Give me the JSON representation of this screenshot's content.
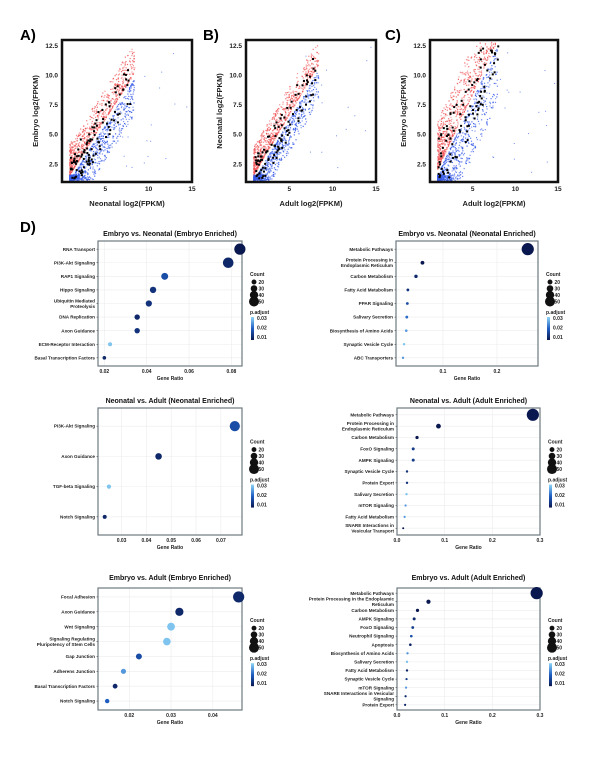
{
  "panel_labels": [
    "A)",
    "B)",
    "C)",
    "D)"
  ],
  "chart_data": [
    {
      "type": "scatter",
      "panel": "A)",
      "xlabel": "Neonatal log2(FPKM)",
      "ylabel": "Embryo log2(FPKM)",
      "xlim": [
        0,
        15
      ],
      "ylim": [
        1,
        13
      ],
      "xticks": [
        "5",
        "10",
        "15"
      ],
      "yticks": [
        "2.5",
        "5.0",
        "7.5",
        "10.0",
        "12.5"
      ],
      "colors": {
        "up": "#f0575a",
        "down": "#3a5de8",
        "highlight": "#000000"
      }
    },
    {
      "type": "scatter",
      "panel": "B)",
      "xlabel": "Adult log2(FPKM)",
      "ylabel": "Neonatal log2(FPKM)",
      "xlim": [
        0,
        15
      ],
      "ylim": [
        1,
        13
      ],
      "xticks": [
        "5",
        "10",
        "15"
      ],
      "yticks": [
        "2.5",
        "5.0",
        "7.5",
        "10.0",
        "12.5"
      ],
      "colors": {
        "up": "#f0575a",
        "down": "#3a5de8",
        "highlight": "#000000"
      }
    },
    {
      "type": "scatter",
      "panel": "C)",
      "xlabel": "Adult log2(FPKM)",
      "ylabel": "Embryo log2(FPKM)",
      "xlim": [
        0,
        15
      ],
      "ylim": [
        1,
        13
      ],
      "xticks": [
        "5",
        "10",
        "15"
      ],
      "yticks": [
        "2.5",
        "5.0",
        "7.5",
        "10.0",
        "12.5"
      ],
      "colors": {
        "up": "#f0575a",
        "down": "#3a5de8",
        "highlight": "#000000"
      }
    },
    {
      "type": "scatter",
      "subtype": "dotplot",
      "title": "Embryo vs. Neonatal (Embryo Enriched)",
      "xlabel": "Gene Ratio",
      "xlim": [
        0.017,
        0.085
      ],
      "xticks": [
        0.02,
        0.04,
        0.06,
        0.08
      ],
      "xtick_labels": [
        "0.02",
        "0.04",
        "0.06",
        "0.08"
      ],
      "terms": [
        "RNA Transport",
        "PI3K-Akt Signaling",
        "RAP1 Signaling",
        "Hippo Signaling",
        "Ubiquitin Mediated Proteolysis",
        "DNA Replication",
        "Axon Guidance",
        "ECM-Receptor Interaction",
        "Basal Transcription Factors"
      ],
      "gene_ratio": [
        0.084,
        0.0785,
        0.0485,
        0.043,
        0.041,
        0.0355,
        0.0355,
        0.0227,
        0.02
      ],
      "count": [
        50,
        47,
        29,
        26,
        25,
        21,
        21,
        14,
        12
      ],
      "p_adjust": [
        0.005,
        0.008,
        0.015,
        0.01,
        0.01,
        0.008,
        0.01,
        0.03,
        0.008
      ]
    },
    {
      "type": "scatter",
      "subtype": "dotplot",
      "title": "Embryo vs. Neonatal (Neonatal Enriched)",
      "xlabel": "Gene Ratio",
      "xlim": [
        0.013,
        0.276
      ],
      "xticks": [
        0.1,
        0.2
      ],
      "xtick_labels": [
        "0.1",
        "0.2"
      ],
      "terms": [
        "Metabolic Pathways",
        "Protein Processing in Endoplasmic Reticulum",
        "Carbon Metabolism",
        "Fatty Acid Metabolism",
        "PPAR Signaling",
        "Salivary Secretion",
        "Biosynthesis of Amino Acids",
        "Synaptic Vesicle Cycle",
        "ABC Transporters"
      ],
      "gene_ratio": [
        0.257,
        0.062,
        0.05,
        0.035,
        0.034,
        0.033,
        0.032,
        0.028,
        0.026
      ],
      "count": [
        55,
        13,
        11,
        8,
        8,
        8,
        7,
        6,
        6
      ],
      "p_adjust": [
        0.005,
        0.005,
        0.008,
        0.01,
        0.015,
        0.02,
        0.025,
        0.03,
        0.025
      ]
    },
    {
      "type": "scatter",
      "subtype": "dotplot",
      "title": "Neonatal vs. Adult (Neonatal Enriched)",
      "xlabel": "Gene Ratio",
      "xlim": [
        0.0205,
        0.0785
      ],
      "xticks": [
        0.03,
        0.04,
        0.05,
        0.06,
        0.07
      ],
      "xtick_labels": [
        "0.03",
        "0.04",
        "0.05",
        "0.06",
        "0.07"
      ],
      "terms": [
        "PI3K-Akt Signaling",
        "Axon Guidance",
        "TGF-beta Signaling",
        "Notch Signaling"
      ],
      "gene_ratio": [
        0.0756,
        0.0449,
        0.0249,
        0.0232
      ],
      "count": [
        45,
        27,
        15,
        14
      ],
      "p_adjust": [
        0.015,
        0.008,
        0.03,
        0.008
      ]
    },
    {
      "type": "scatter",
      "subtype": "dotplot",
      "title": "Neonatal vs. Adult (Adult Enriched)",
      "xlabel": "Gene Ratio",
      "xlim": [
        0,
        0.3
      ],
      "xticks": [
        0.0,
        0.1,
        0.2,
        0.3
      ],
      "xtick_labels": [
        "0.0",
        "0.1",
        "0.2",
        "0.3"
      ],
      "terms": [
        "Metabolic Pathways",
        "Protein Processing in Endoplasmic Reticulum",
        "Carbon Metabolism",
        "FoxO Signaling",
        "AMPK Signaling",
        "Synaptic Vesicle Cycle",
        "Protein Export",
        "Salivary Secretion",
        "mTOR Signaling",
        "Fatty Acid Metabolism",
        "SNARE Interactions in Vesicular Transport"
      ],
      "gene_ratio": [
        0.285,
        0.087,
        0.042,
        0.034,
        0.034,
        0.021,
        0.021,
        0.02,
        0.018,
        0.016,
        0.013
      ],
      "count": [
        55,
        18,
        10,
        9,
        9,
        6,
        6,
        6,
        5,
        5,
        4
      ],
      "p_adjust": [
        0.005,
        0.005,
        0.005,
        0.012,
        0.012,
        0.01,
        0.01,
        0.03,
        0.025,
        0.025,
        0.005
      ]
    },
    {
      "type": "scatter",
      "subtype": "dotplot",
      "title": "Embryo vs. Adult (Embryo Enriched)",
      "xlabel": "Gene Ratio",
      "xlim": [
        0.0125,
        0.047
      ],
      "xticks": [
        0.02,
        0.03,
        0.04
      ],
      "xtick_labels": [
        "0.02",
        "0.03",
        "0.04"
      ],
      "terms": [
        "Focal Adhesion",
        "Axon Guidance",
        "Wnt Signaling",
        "Signaling Regulating Pluripotency of Stem Cells",
        "Gap Junction",
        "Adherens Junction",
        "Basal Transcription Factors",
        "Notch Signaling"
      ],
      "gene_ratio": [
        0.0462,
        0.032,
        0.03,
        0.029,
        0.0223,
        0.0186,
        0.0166,
        0.0147
      ],
      "count": [
        50,
        35,
        33,
        32,
        24,
        20,
        18,
        16
      ],
      "p_adjust": [
        0.008,
        0.008,
        0.03,
        0.03,
        0.015,
        0.025,
        0.008,
        0.018
      ]
    },
    {
      "type": "scatter",
      "subtype": "dotplot",
      "title": "Embryo vs. Adult (Adult Enriched)",
      "xlabel": "Gene Ratio",
      "xlim": [
        0,
        0.3
      ],
      "xticks": [
        0.0,
        0.1,
        0.2,
        0.3
      ],
      "xtick_labels": [
        "0.0",
        "0.1",
        "0.2",
        "0.3"
      ],
      "terms": [
        "Metabolic Pathways",
        "Protein Processing in the Endoplasmic Reticulum",
        "Carbon Metabolism",
        "AMPK Signaling",
        "FoxO Signaling",
        "Neutrophil Signaling",
        "Apoptosis",
        "Biosynthesis of Amino Acids",
        "Salivary Secretion",
        "Fatty Acid Metabolism",
        "Synaptic Vesicle Cycle",
        "mTOR Signaling",
        "SNARE Interactions in Vesicular Signaling",
        "Protein Export"
      ],
      "gene_ratio": [
        0.293,
        0.066,
        0.043,
        0.036,
        0.033,
        0.03,
        0.028,
        0.022,
        0.021,
        0.021,
        0.02,
        0.019,
        0.018,
        0.017
      ],
      "count": [
        55,
        15,
        10,
        9,
        8,
        7,
        7,
        6,
        6,
        6,
        5,
        5,
        5,
        5
      ],
      "p_adjust": [
        0.005,
        0.005,
        0.005,
        0.008,
        0.012,
        0.015,
        0.008,
        0.025,
        0.03,
        0.008,
        0.012,
        0.025,
        0.008,
        0.008
      ]
    }
  ],
  "legend": {
    "count_title": "Count",
    "count_values": [
      20,
      30,
      40,
      50
    ],
    "count_labels": [
      "20",
      "30",
      "40",
      "50"
    ],
    "padj_title": "p.adjust",
    "padj_labels": [
      "0.03",
      "0.02",
      "0.01"
    ],
    "padj_colors": {
      "low": "#0a1850",
      "mid": "#1f5fc4",
      "high": "#8fd6f7"
    }
  }
}
